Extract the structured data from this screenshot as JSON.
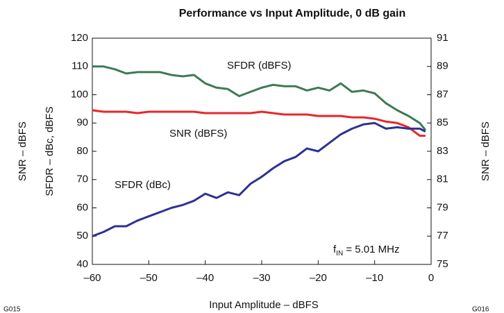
{
  "chart_data": {
    "type": "line",
    "title": "Performance vs Input Amplitude, 0 dB gain",
    "xlabel": "Input Amplitude – dBFS",
    "ylabel": "SFDR – dBc, dBFS",
    "ylabel_outer": "SNR – dBFS",
    "y2label": "SNR – dBFS",
    "x": [
      -60,
      -58,
      -56,
      -54,
      -52,
      -50,
      -48,
      -46,
      -44,
      -42,
      -40,
      -38,
      -36,
      -34,
      -32,
      -30,
      -28,
      -26,
      -24,
      -22,
      -20,
      -18,
      -16,
      -14,
      -12,
      -10,
      -8,
      -6,
      -4,
      -2,
      -1
    ],
    "series": [
      {
        "name": "SFDR (dBFS)",
        "color": "#3d7a55",
        "values": [
          110,
          110,
          109,
          107.5,
          108,
          108,
          108,
          107,
          106.5,
          107,
          104,
          102.5,
          102,
          99.5,
          101,
          102.5,
          103.5,
          103,
          103,
          101.5,
          102.5,
          101.5,
          104,
          101,
          101.5,
          100.5,
          97,
          94.5,
          92.5,
          90,
          87.5
        ]
      },
      {
        "name": "SNR (dBFS)",
        "color": "#e8272a",
        "axis": "y2",
        "values": [
          85.9,
          85.8,
          85.8,
          85.8,
          85.7,
          85.8,
          85.8,
          85.8,
          85.8,
          85.8,
          85.7,
          85.7,
          85.7,
          85.7,
          85.7,
          85.8,
          85.7,
          85.6,
          85.6,
          85.6,
          85.5,
          85.5,
          85.5,
          85.4,
          85.4,
          85.3,
          85.1,
          85.0,
          84.7,
          84.1,
          84.1
        ]
      },
      {
        "name": "SFDR (dBc)",
        "color": "#2e3192",
        "values": [
          50,
          51.5,
          53.5,
          53.5,
          55.5,
          57,
          58.5,
          60,
          61,
          62.5,
          65,
          63.5,
          65.5,
          64.5,
          68.5,
          71,
          74,
          76.5,
          78,
          81,
          80,
          83,
          86,
          88,
          89.5,
          90,
          88,
          88.5,
          88,
          88,
          87
        ]
      }
    ],
    "annotation": {
      "main": "f",
      "sub": "IN",
      "rest": " = 5.01 MHz"
    },
    "codes": [
      "G015",
      "G016"
    ],
    "xlim": [
      -60,
      0
    ],
    "xticks": [
      {
        "value": -60,
        "label": "–60"
      },
      {
        "value": -50,
        "label": "–50"
      },
      {
        "value": -40,
        "label": "–40"
      },
      {
        "value": -30,
        "label": "–30"
      },
      {
        "value": -20,
        "label": "–20"
      },
      {
        "value": -10,
        "label": "–10"
      },
      0
    ],
    "ylim": [
      40,
      120
    ],
    "yticks": [
      40,
      50,
      60,
      70,
      80,
      90,
      100,
      110,
      120
    ],
    "y2lim": [
      75,
      91
    ],
    "y2ticks": [
      75,
      77,
      79,
      81,
      83,
      85,
      87,
      89,
      91
    ],
    "grid": false
  }
}
